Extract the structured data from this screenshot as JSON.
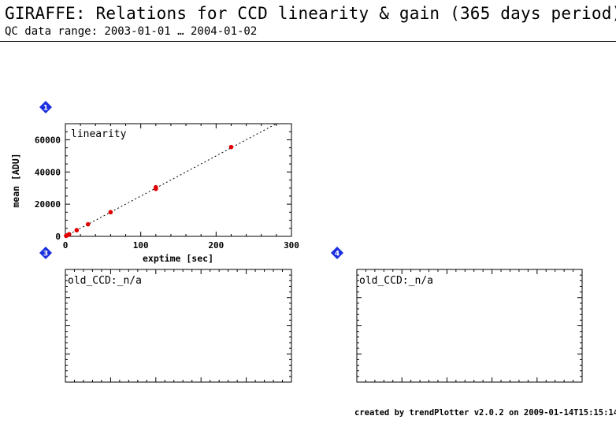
{
  "header": {
    "title": "GIRAFFE: Relations for CCD linearity & gain (365 days period)",
    "subtitle": "QC data range: 2003-01-01 … 2004-01-02"
  },
  "footer": {
    "credit": "created by trendPlotter v2.0.2 on 2009-01-14T15:15:14"
  },
  "colors": {
    "marker": "#e00000",
    "badge": "#1a2fe0",
    "axis": "#000000"
  },
  "panels": [
    {
      "badge": "1",
      "icon": "diamond-badge-icon"
    },
    {
      "badge": "3",
      "icon": "diamond-badge-icon"
    },
    {
      "badge": "4",
      "icon": "diamond-badge-icon"
    }
  ],
  "chart_data": [
    {
      "type": "scatter",
      "title": "linearity",
      "xlabel": "exptime [sec]",
      "ylabel": "mean [ADU]",
      "xlim": [
        0,
        300
      ],
      "ylim": [
        0,
        70000
      ],
      "xticks": [
        0,
        100,
        200,
        300
      ],
      "yticks": [
        0,
        20000,
        40000,
        60000
      ],
      "fit_line": {
        "style": "dotted",
        "slope": 250,
        "intercept": 0
      },
      "series": [
        {
          "x": [
            1,
            3,
            5,
            15,
            30,
            60,
            120,
            120,
            220
          ],
          "y": [
            300,
            800,
            1300,
            3800,
            7500,
            15000,
            29500,
            30500,
            55500
          ]
        }
      ]
    },
    {
      "type": "scatter",
      "title": "old_CCD:_n/a",
      "series": []
    },
    {
      "type": "scatter",
      "title": "old_CCD:_n/a",
      "series": []
    }
  ]
}
